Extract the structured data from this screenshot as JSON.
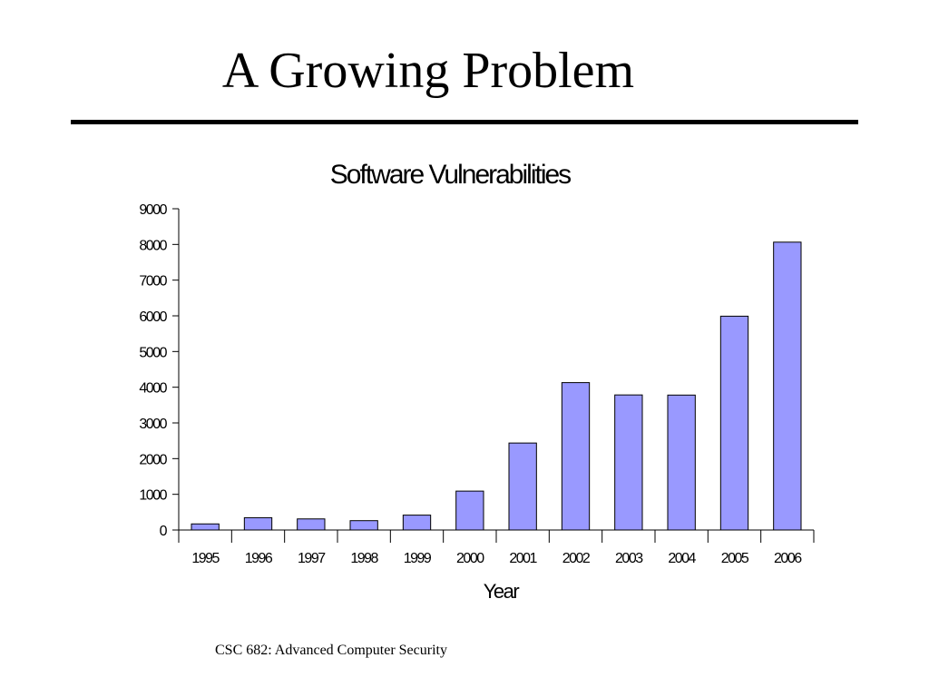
{
  "slide": {
    "title": "A Growing Problem",
    "footer": "CSC 682: Advanced Computer Security"
  },
  "colors": {
    "bar_fill": "#9999ff",
    "bar_stroke": "#000000"
  },
  "chart_data": {
    "type": "bar",
    "title": "Software Vulnerabilities",
    "xlabel": "Year",
    "ylabel": "",
    "categories": [
      "1995",
      "1996",
      "1997",
      "1998",
      "1999",
      "2000",
      "2001",
      "2002",
      "2003",
      "2004",
      "2005",
      "2006"
    ],
    "values": [
      171,
      345,
      311,
      262,
      417,
      1090,
      2437,
      4129,
      3784,
      3780,
      5990,
      8064
    ],
    "ylim": [
      0,
      9000
    ],
    "yticks": [
      "0",
      "1000",
      "2000",
      "3000",
      "4000",
      "5000",
      "6000",
      "7000",
      "8000",
      "9000"
    ],
    "grid": false,
    "legend": "none"
  }
}
